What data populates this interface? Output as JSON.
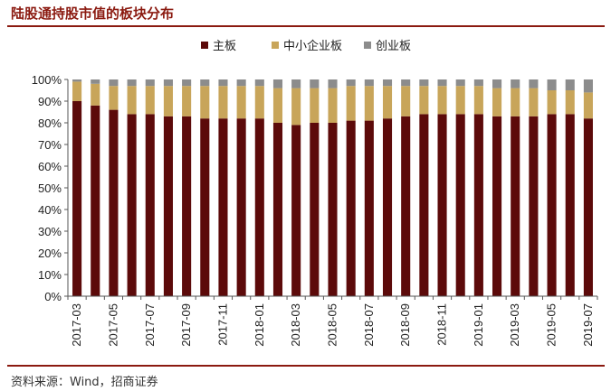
{
  "page": {
    "title": "陆股通持股市值的板块分布",
    "source": "资料来源：Wind，招商证券"
  },
  "colors": {
    "title": "#8b1a10",
    "main_board": "#5c0a0a",
    "sme_board": "#c8a55a",
    "chinext": "#8c8c8c"
  },
  "chart_data": {
    "type": "bar",
    "stacked": true,
    "title": "",
    "legend_position": "top",
    "grid": false,
    "ylim": [
      0,
      100
    ],
    "y_ticks": [
      "0%",
      "10%",
      "20%",
      "30%",
      "40%",
      "50%",
      "60%",
      "70%",
      "80%",
      "90%",
      "100%"
    ],
    "x_tick_labels": [
      "2017-03",
      "2017-05",
      "2017-07",
      "2017-09",
      "2017-11",
      "2018-01",
      "2018-03",
      "2018-05",
      "2018-07",
      "2018-09",
      "2018-11",
      "2019-01",
      "2019-03",
      "2019-05",
      "2019-07"
    ],
    "categories": [
      "2017-03",
      "2017-04",
      "2017-05",
      "2017-06",
      "2017-07",
      "2017-08",
      "2017-09",
      "2017-10",
      "2017-11",
      "2017-12",
      "2018-01",
      "2018-02",
      "2018-03",
      "2018-04",
      "2018-05",
      "2018-06",
      "2018-07",
      "2018-08",
      "2018-09",
      "2018-10",
      "2018-11",
      "2018-12",
      "2019-01",
      "2019-02",
      "2019-03",
      "2019-04",
      "2019-05",
      "2019-06",
      "2019-07"
    ],
    "series": [
      {
        "name": "主板",
        "color": "#5c0a0a",
        "values": [
          90,
          88,
          86,
          84,
          84,
          83,
          83,
          82,
          82,
          82,
          82,
          80,
          79,
          80,
          80,
          81,
          81,
          82,
          83,
          84,
          84,
          84,
          84,
          83,
          83,
          83,
          84,
          84,
          82
        ]
      },
      {
        "name": "中小企业板",
        "color": "#c8a55a",
        "values": [
          9,
          10,
          11,
          13,
          13,
          14,
          14,
          15,
          15,
          15,
          15,
          16,
          17,
          16,
          16,
          16,
          16,
          15,
          14,
          13,
          13,
          13,
          13,
          13,
          13,
          13,
          11,
          11,
          12
        ]
      },
      {
        "name": "创业板",
        "color": "#8c8c8c",
        "values": [
          1,
          2,
          3,
          3,
          3,
          3,
          3,
          3,
          3,
          3,
          3,
          4,
          4,
          4,
          4,
          3,
          3,
          3,
          3,
          3,
          3,
          3,
          3,
          4,
          4,
          4,
          5,
          5,
          6
        ]
      }
    ]
  }
}
